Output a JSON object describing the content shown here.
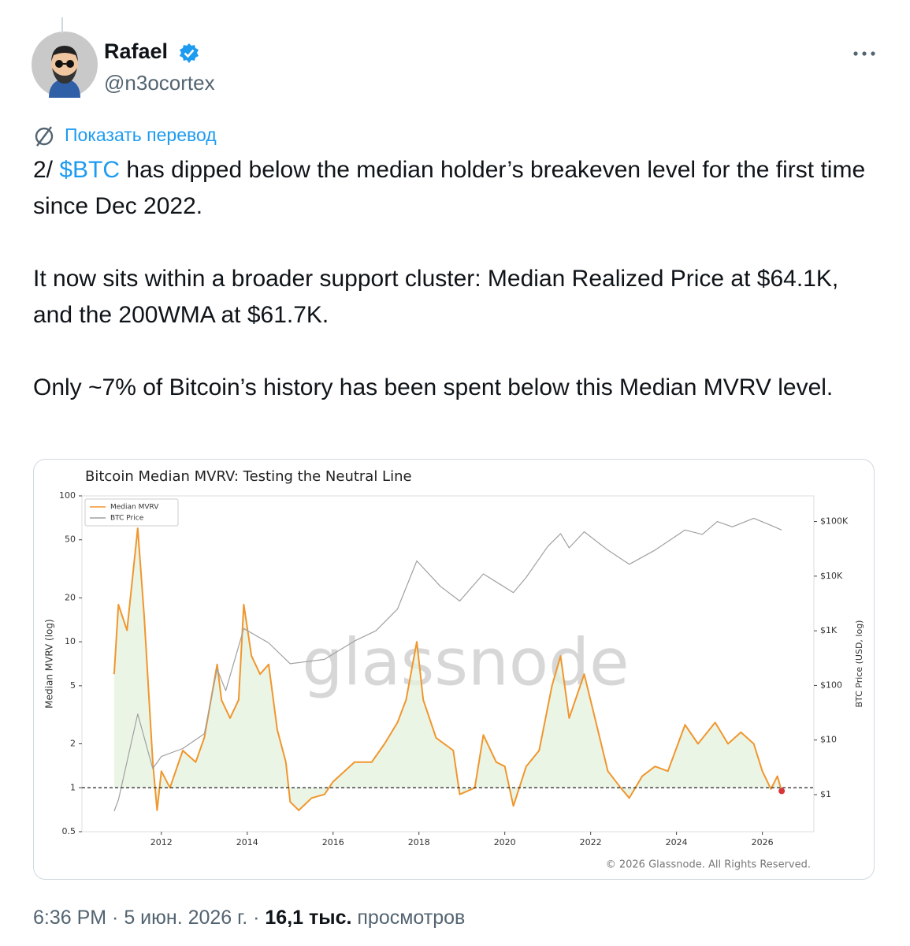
{
  "author": {
    "name": "Rafael",
    "handle": "@n3ocortex"
  },
  "translate": "Показать перевод",
  "body": [
    [
      "2/ ",
      "$BTC",
      " has dipped below the median holder’s breakeven level for the first time since Dec 2022."
    ],
    [
      "It now sits within a broader support cluster: Median Realized Price at $64.1K, and the 200WMA at $61.7K."
    ],
    [
      "Only ~7% of Bitcoin’s history has been spent below this Median MVRV level."
    ]
  ],
  "footer": {
    "timestamp": "6:36 PM · 5 июн. 2026 г. ·",
    "views_count": "16,1 тыс.",
    "views_label": "просмотров"
  },
  "chart_data": {
    "type": "line",
    "title": "Bitcoin Median MVRV: Testing the Neutral Line",
    "watermark": "glassnode",
    "copyright": "© 2026 Glassnode. All Rights Reserved.",
    "ylabel": "Median MVRV (log)",
    "y2label": "BTC Price (USD, log)",
    "log_scale": true,
    "reference_line": 1,
    "xlim": [
      2010.15,
      2027.2
    ],
    "xticks": [
      2012,
      2014,
      2016,
      2018,
      2020,
      2022,
      2024,
      2026
    ],
    "ylim": [
      0.5,
      100
    ],
    "yticks": [
      0.5,
      1,
      2,
      5,
      10,
      20,
      50,
      100
    ],
    "y2lim": [
      0.21,
      295000
    ],
    "y2ticks": [
      {
        "value": 1,
        "label": "$1"
      },
      {
        "value": 10,
        "label": "$10"
      },
      {
        "value": 100,
        "label": "$100"
      },
      {
        "value": 1000,
        "label": "$1K"
      },
      {
        "value": 10000,
        "label": "$10K"
      },
      {
        "value": 100000,
        "label": "$100K"
      }
    ],
    "legend": "upper left",
    "series": [
      {
        "name": "Median MVRV",
        "color": "#f0962d",
        "x": [
          2010.9,
          2011.0,
          2011.2,
          2011.45,
          2011.6,
          2011.8,
          2011.9,
          2012.0,
          2012.2,
          2012.5,
          2012.8,
          2013.0,
          2013.3,
          2013.4,
          2013.6,
          2013.8,
          2013.92,
          2014.1,
          2014.3,
          2014.5,
          2014.7,
          2014.9,
          2015.0,
          2015.2,
          2015.5,
          2015.8,
          2016.0,
          2016.5,
          2016.9,
          2017.2,
          2017.5,
          2017.7,
          2017.95,
          2018.1,
          2018.4,
          2018.8,
          2018.95,
          2019.3,
          2019.5,
          2019.8,
          2020.0,
          2020.2,
          2020.5,
          2020.8,
          2021.1,
          2021.3,
          2021.5,
          2021.85,
          2022.1,
          2022.4,
          2022.7,
          2022.9,
          2023.2,
          2023.5,
          2023.8,
          2024.2,
          2024.5,
          2024.9,
          2025.2,
          2025.5,
          2025.8,
          2026.0,
          2026.2,
          2026.35,
          2026.45
        ],
        "values": [
          6,
          18,
          12,
          60,
          15,
          1.5,
          0.7,
          1.3,
          1.0,
          1.8,
          1.5,
          2.2,
          7,
          4,
          3,
          4,
          18,
          8,
          6,
          7,
          2.5,
          1.5,
          0.8,
          0.7,
          0.85,
          0.9,
          1.1,
          1.5,
          1.5,
          2,
          2.8,
          4,
          10,
          4,
          2.2,
          1.8,
          0.9,
          1.0,
          2.3,
          1.5,
          1.4,
          0.75,
          1.4,
          1.8,
          5,
          8,
          3,
          6,
          3,
          1.3,
          1.0,
          0.85,
          1.2,
          1.4,
          1.3,
          2.7,
          2.0,
          2.8,
          2.0,
          2.4,
          2.0,
          1.3,
          0.98,
          1.2,
          0.95
        ]
      },
      {
        "name": "BTC Price",
        "color": "#a0a0a0",
        "axis": "y2",
        "x": [
          2010.9,
          2011.0,
          2011.45,
          2011.8,
          2012.0,
          2012.5,
          2013.0,
          2013.3,
          2013.5,
          2013.92,
          2014.5,
          2015.0,
          2015.8,
          2016.5,
          2017.0,
          2017.5,
          2017.95,
          2018.5,
          2018.95,
          2019.5,
          2020.2,
          2020.5,
          2021.0,
          2021.3,
          2021.5,
          2021.85,
          2022.4,
          2022.9,
          2023.5,
          2024.2,
          2024.6,
          2024.95,
          2025.3,
          2025.8,
          2026.2,
          2026.45
        ],
        "values": [
          0.5,
          0.8,
          30,
          3,
          5,
          7,
          13,
          200,
          80,
          1100,
          600,
          250,
          300,
          650,
          1000,
          2500,
          19000,
          6500,
          3500,
          11000,
          5000,
          9500,
          35000,
          60000,
          33000,
          65000,
          30000,
          16500,
          30000,
          70000,
          58000,
          100000,
          80000,
          115000,
          85000,
          70000
        ]
      }
    ]
  }
}
